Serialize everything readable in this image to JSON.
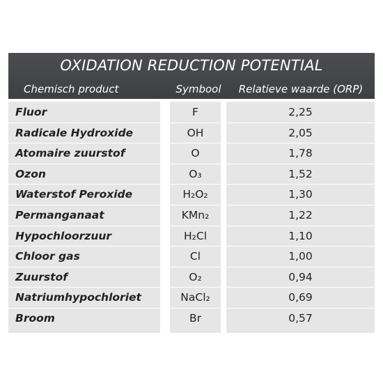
{
  "table": {
    "title": "OXIDATION REDUCTION POTENTIAL",
    "headers": {
      "product": "Chemisch product",
      "symbol": "Symbool",
      "value": "Relatieve waarde (ORP)"
    },
    "rows": [
      {
        "product": "Fluor",
        "symbol": "F",
        "value": "2,25"
      },
      {
        "product": "Radicale Hydroxide",
        "symbol": "OH",
        "value": "2,05"
      },
      {
        "product": "Atomaire zuurstof",
        "symbol": "O",
        "value": "1,78"
      },
      {
        "product": "Ozon",
        "symbol": "O₃",
        "value": "1,52"
      },
      {
        "product": "Waterstof Peroxide",
        "symbol": "H₂O₂",
        "value": "1,30"
      },
      {
        "product": "Permanganaat",
        "symbol": "KMn₂",
        "value": "1,22"
      },
      {
        "product": "Hypochloorzuur",
        "symbol": "H₂Cl",
        "value": "1,10"
      },
      {
        "product": "Chloor gas",
        "symbol": "Cl",
        "value": "1,00"
      },
      {
        "product": "Zuurstof",
        "symbol": "O₂",
        "value": "0,94"
      },
      {
        "product": "Natriumhypochloriet",
        "symbol": "NaCl₂",
        "value": "0,69"
      },
      {
        "product": "Broom",
        "symbol": "Br",
        "value": "0,57"
      }
    ]
  }
}
